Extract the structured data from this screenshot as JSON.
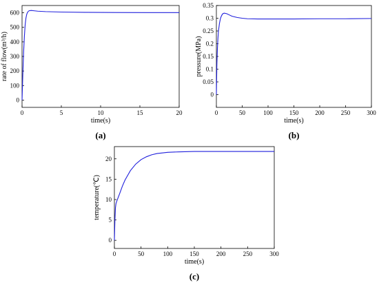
{
  "chart_data": [
    {
      "id": "a",
      "panel_label": "(a)",
      "type": "line",
      "xlabel": "time(s)",
      "ylabel": "rate of flow(m³/h)",
      "xlim": [
        0,
        20
      ],
      "ylim": [
        -50,
        650
      ],
      "xticks": [
        0,
        5,
        10,
        15,
        20
      ],
      "yticks": [
        0,
        100,
        200,
        300,
        400,
        500,
        600
      ],
      "x": [
        0,
        0.1,
        0.2,
        0.3,
        0.4,
        0.5,
        0.6,
        0.7,
        0.8,
        0.9,
        1.0,
        1.2,
        1.5,
        2,
        3,
        5,
        8,
        12,
        16,
        20
      ],
      "y": [
        0,
        180,
        330,
        440,
        520,
        565,
        590,
        603,
        610,
        614,
        615,
        616,
        614,
        611,
        608,
        605,
        603,
        602,
        601,
        601
      ]
    },
    {
      "id": "b",
      "panel_label": "(b)",
      "type": "line",
      "xlabel": "time(s)",
      "ylabel": "pressure(MPa)",
      "xlim": [
        0,
        300
      ],
      "ylim": [
        -0.05,
        0.35
      ],
      "xticks": [
        0,
        50,
        100,
        150,
        200,
        250,
        300
      ],
      "yticks": [
        0,
        0.05,
        0.1,
        0.15,
        0.2,
        0.25,
        0.3,
        0.35
      ],
      "x": [
        0,
        1,
        2,
        3,
        4,
        6,
        8,
        10,
        12,
        15,
        20,
        25,
        30,
        40,
        50,
        60,
        80,
        100,
        150,
        200,
        250,
        300
      ],
      "y": [
        0,
        0.12,
        0.18,
        0.22,
        0.25,
        0.28,
        0.3,
        0.31,
        0.317,
        0.32,
        0.318,
        0.313,
        0.308,
        0.303,
        0.3,
        0.298,
        0.297,
        0.297,
        0.297,
        0.298,
        0.298,
        0.299
      ]
    },
    {
      "id": "c",
      "panel_label": "(c)",
      "type": "line",
      "xlabel": "time(s)",
      "ylabel": "temperature(℃)",
      "xlim": [
        0,
        300
      ],
      "ylim": [
        -2,
        23
      ],
      "xticks": [
        0,
        50,
        100,
        150,
        200,
        250,
        300
      ],
      "yticks": [
        0,
        5,
        10,
        15,
        20
      ],
      "x": [
        0,
        1,
        2,
        3,
        5,
        10,
        15,
        20,
        30,
        40,
        50,
        60,
        70,
        80,
        100,
        120,
        150,
        200,
        250,
        300
      ],
      "y": [
        0,
        5,
        8,
        9,
        9.8,
        11.5,
        13.3,
        14.8,
        17.1,
        18.7,
        19.8,
        20.5,
        21.0,
        21.3,
        21.6,
        21.7,
        21.8,
        21.8,
        21.8,
        21.8
      ]
    }
  ]
}
